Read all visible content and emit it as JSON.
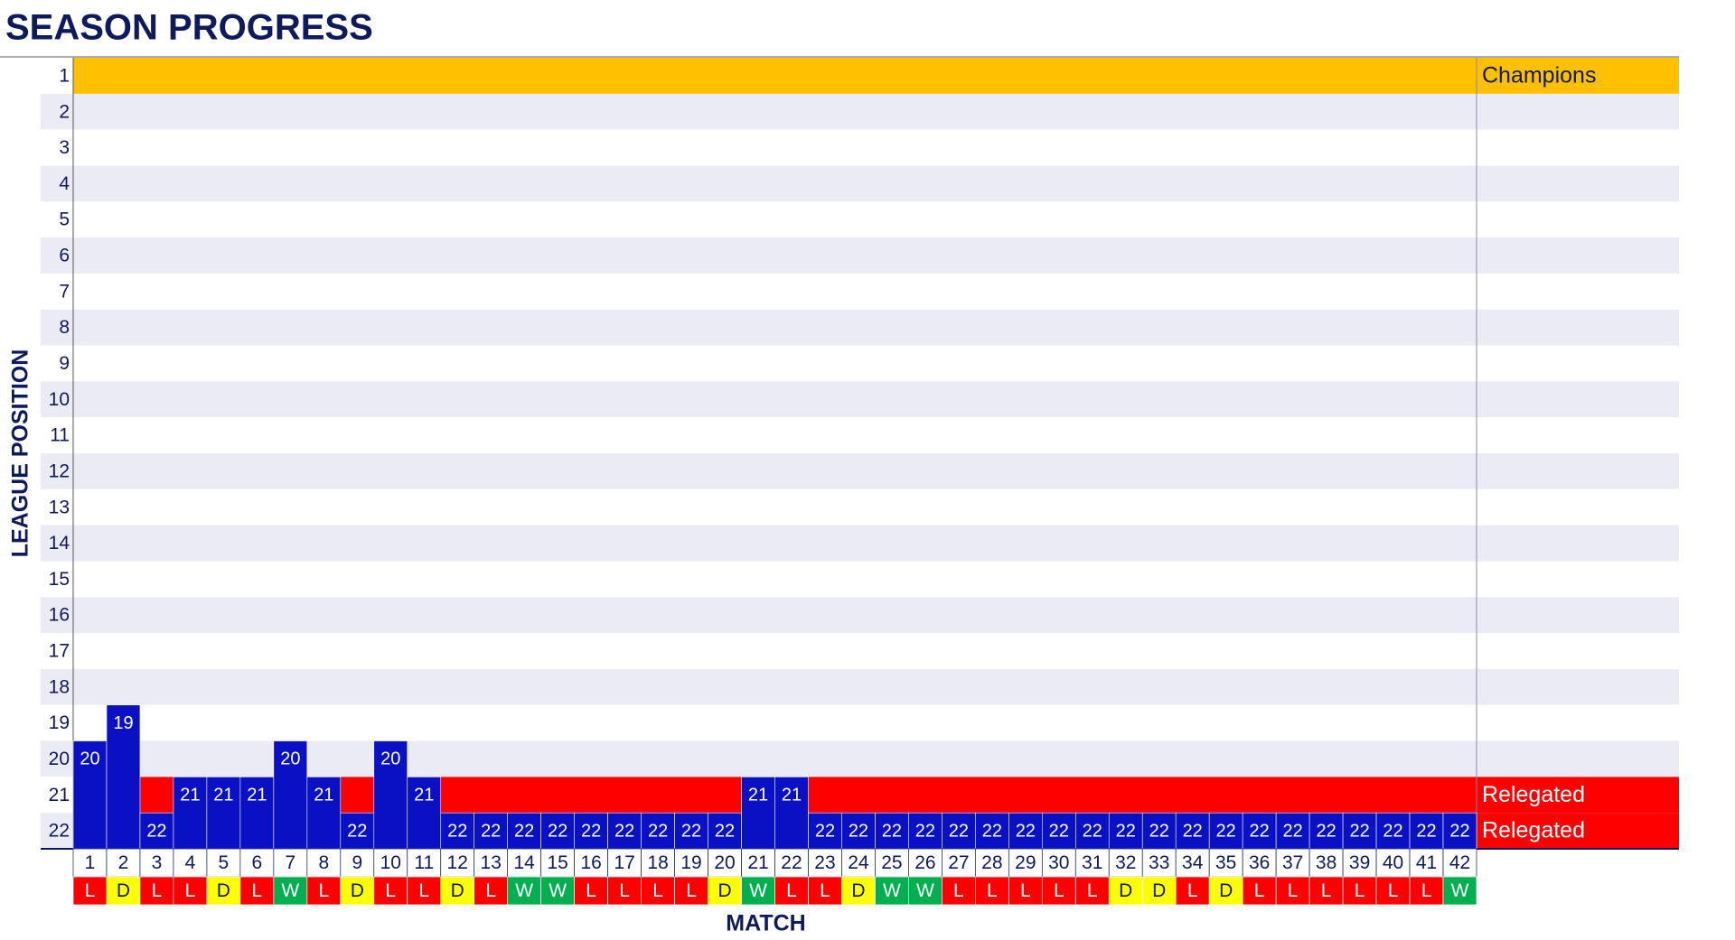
{
  "chart_data": {
    "type": "bar",
    "title": "SEASON PROGRESS",
    "x_label": "MATCH",
    "y_label": "LEAGUE POSITION",
    "categories": [
      "1",
      "2",
      "3",
      "4",
      "5",
      "6",
      "7",
      "8",
      "9",
      "10",
      "11",
      "12",
      "13",
      "14",
      "15",
      "16",
      "17",
      "18",
      "19",
      "20",
      "21",
      "22",
      "23",
      "24",
      "25",
      "26",
      "27",
      "28",
      "29",
      "30",
      "31",
      "32",
      "33",
      "34",
      "35",
      "36",
      "37",
      "38",
      "39",
      "40",
      "41",
      "42"
    ],
    "values": [
      20,
      19,
      22,
      21,
      21,
      21,
      20,
      21,
      22,
      20,
      21,
      22,
      22,
      22,
      22,
      22,
      22,
      22,
      22,
      22,
      21,
      21,
      22,
      22,
      22,
      22,
      22,
      22,
      22,
      22,
      22,
      22,
      22,
      22,
      22,
      22,
      22,
      22,
      22,
      22,
      22,
      22
    ],
    "color": "#0a10c4",
    "results": [
      "L",
      "D",
      "L",
      "L",
      "D",
      "L",
      "W",
      "L",
      "D",
      "L",
      "L",
      "D",
      "L",
      "W",
      "W",
      "L",
      "L",
      "L",
      "L",
      "D",
      "W",
      "L",
      "L",
      "D",
      "W",
      "W",
      "L",
      "L",
      "L",
      "L",
      "L",
      "D",
      "D",
      "L",
      "D",
      "L",
      "L",
      "L",
      "L",
      "L",
      "L",
      "W"
    ],
    "result_colors": {
      "W": "#00b050",
      "D": "#ffff00",
      "L": "#ff0000"
    },
    "zones": [
      {
        "position": 1,
        "label": "Champions",
        "color": "#ffc000"
      },
      {
        "position": 21,
        "label": "Relegated",
        "color": "#ff0000"
      },
      {
        "position": 22,
        "label": "Relegated",
        "color": "#ff0000"
      }
    ],
    "ylim": [
      22.5,
      0.5
    ],
    "yticks": [
      1,
      2,
      3,
      4,
      5,
      6,
      7,
      8,
      9,
      10,
      11,
      12,
      13,
      14,
      15,
      16,
      17,
      18,
      19,
      20,
      21,
      22
    ],
    "band_color": "#ebebf5"
  }
}
